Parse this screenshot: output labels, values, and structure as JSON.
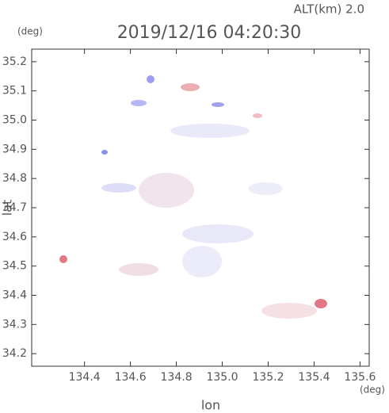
{
  "chart_data": {
    "type": "map",
    "title": "2019/12/16 04:20:30",
    "subtitle": "ALT(km) 2.0",
    "x_label": "lon",
    "y_label": "lat",
    "x_unit": "(deg)",
    "y_unit": "(deg)",
    "xlim": [
      134.17,
      135.64
    ],
    "ylim": [
      34.157,
      35.243
    ],
    "xticks": [
      134.4,
      134.6,
      134.8,
      {
        "value": 135,
        "label": "135.0"
      },
      135.2,
      135.4,
      135.6
    ],
    "yticks": [
      34.2,
      34.3,
      34.4,
      34.5,
      34.6,
      34.7,
      34.8,
      34.9,
      {
        "value": 35,
        "label": "35.0"
      },
      35.1,
      35.2
    ]
  }
}
